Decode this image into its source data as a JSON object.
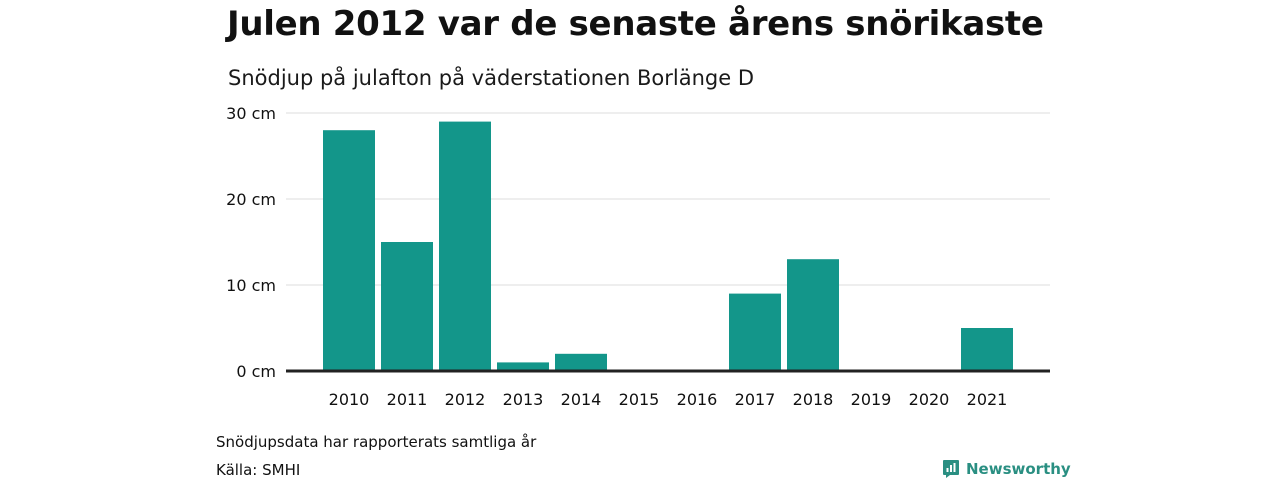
{
  "title": "Julen 2012 var de senaste årens snörikaste",
  "subtitle": "Snödjup på julafton på väderstationen Borlänge D",
  "note": "Snödjupsdata har rapporterats samtliga år",
  "source": "Källa: SMHI",
  "brand": {
    "name": "Newsworthy",
    "icon": "newsworthy-logo-icon",
    "color": "#2a8f82"
  },
  "colors": {
    "bar": "#13968a",
    "grid": "#dddddd",
    "baseline": "#222222"
  },
  "chart_data": {
    "type": "bar",
    "title": "Julen 2012 var de senaste årens snörikaste",
    "subtitle": "Snödjup på julafton på väderstationen Borlänge D",
    "categories": [
      "2010",
      "2011",
      "2012",
      "2013",
      "2014",
      "2015",
      "2016",
      "2017",
      "2018",
      "2019",
      "2020",
      "2021"
    ],
    "values": [
      28,
      15,
      29,
      1,
      2,
      0,
      0,
      9,
      13,
      0,
      0,
      5
    ],
    "unit": "cm",
    "ylim": [
      0,
      30
    ],
    "yticks": [
      0,
      10,
      20,
      30
    ],
    "ytick_labels": [
      "0 cm",
      "10 cm",
      "20 cm",
      "30 cm"
    ],
    "grid": true,
    "legend": "none"
  }
}
